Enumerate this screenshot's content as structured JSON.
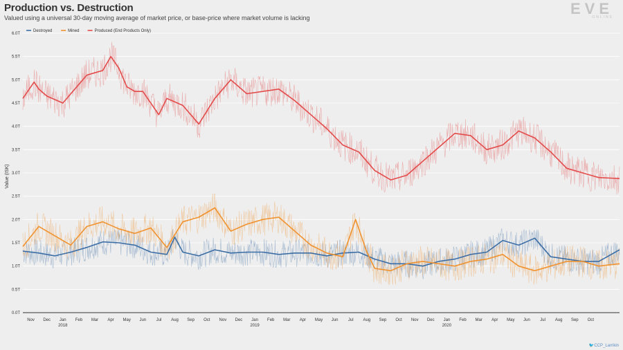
{
  "title": "Production vs. Destruction",
  "subtitle": "Valued using a universal 30-day moving average of market price, or base-price where market volume is lacking",
  "logo": {
    "main": "EVE",
    "sub": "ONLINE"
  },
  "credit": "CCP_Larrikin",
  "colors": {
    "destroyed": "#3c6ea5",
    "mined": "#f0922e",
    "produced": "#e34a4a",
    "background": "#eeeeee",
    "grid": "#ffffff"
  },
  "chart_data": {
    "type": "line",
    "title": "Production vs. Destruction",
    "ylabel": "Value (ISK)",
    "xlabel": "",
    "ylim": [
      0,
      6.0
    ],
    "yticks": [
      {
        "value": 0.0,
        "label": "0.0T"
      },
      {
        "value": 0.5,
        "label": "0.5T"
      },
      {
        "value": 1.0,
        "label": "1.0T"
      },
      {
        "value": 1.5,
        "label": "1.5T"
      },
      {
        "value": 2.0,
        "label": "2.0T"
      },
      {
        "value": 2.5,
        "label": "2.5T"
      },
      {
        "value": 3.0,
        "label": "3.0T"
      },
      {
        "value": 3.5,
        "label": "3.5T"
      },
      {
        "value": 4.0,
        "label": "4.0T"
      },
      {
        "value": 4.5,
        "label": "4.5T"
      },
      {
        "value": 5.0,
        "label": "5.0T"
      },
      {
        "value": 5.5,
        "label": "5.5T"
      },
      {
        "value": 6.0,
        "label": "6.0T"
      }
    ],
    "xrange": [
      0,
      37.3
    ],
    "xticks": [
      {
        "value": 0.5,
        "label": "Nov"
      },
      {
        "value": 1.5,
        "label": "Dec"
      },
      {
        "value": 2.5,
        "label": "Jan",
        "year": "2018"
      },
      {
        "value": 3.5,
        "label": "Feb"
      },
      {
        "value": 4.5,
        "label": "Mar"
      },
      {
        "value": 5.5,
        "label": "Apr"
      },
      {
        "value": 6.5,
        "label": "May"
      },
      {
        "value": 7.5,
        "label": "Jun"
      },
      {
        "value": 8.5,
        "label": "Jul"
      },
      {
        "value": 9.5,
        "label": "Aug"
      },
      {
        "value": 10.5,
        "label": "Sep"
      },
      {
        "value": 11.5,
        "label": "Oct"
      },
      {
        "value": 12.5,
        "label": "Nov"
      },
      {
        "value": 13.5,
        "label": "Dec"
      },
      {
        "value": 14.5,
        "label": "Jan",
        "year": "2019"
      },
      {
        "value": 15.5,
        "label": "Feb"
      },
      {
        "value": 16.5,
        "label": "Mar"
      },
      {
        "value": 17.5,
        "label": "Apr"
      },
      {
        "value": 18.5,
        "label": "May"
      },
      {
        "value": 19.5,
        "label": "Jun"
      },
      {
        "value": 20.5,
        "label": "Jul"
      },
      {
        "value": 21.5,
        "label": "Aug"
      },
      {
        "value": 22.5,
        "label": "Sep"
      },
      {
        "value": 23.5,
        "label": "Oct"
      },
      {
        "value": 24.5,
        "label": "Nov"
      },
      {
        "value": 25.5,
        "label": "Dec"
      },
      {
        "value": 26.5,
        "label": "Jan",
        "year": "2020"
      },
      {
        "value": 27.5,
        "label": "Feb"
      },
      {
        "value": 28.5,
        "label": "Mar"
      },
      {
        "value": 29.5,
        "label": "Apr"
      },
      {
        "value": 30.5,
        "label": "May"
      },
      {
        "value": 31.5,
        "label": "Jun"
      },
      {
        "value": 32.5,
        "label": "Jul"
      },
      {
        "value": 33.5,
        "label": "Aug"
      },
      {
        "value": 34.5,
        "label": "Sep"
      },
      {
        "value": 35.5,
        "label": "Oct"
      }
    ],
    "legend": [
      "Destroyed",
      "Mined",
      "Produced (End Products Only)"
    ],
    "legend_position": "top-left",
    "series": [
      {
        "name": "Destroyed",
        "x": [
          0,
          1,
          2,
          3,
          4,
          5,
          6,
          7,
          8,
          9,
          9.5,
          10,
          11,
          12,
          13,
          14,
          15,
          16,
          17,
          18,
          19,
          20,
          21,
          22,
          23,
          24,
          25,
          26,
          27,
          28,
          29,
          30,
          31,
          32,
          33,
          34,
          35,
          36,
          37.3
        ],
        "values": [
          1.32,
          1.28,
          1.22,
          1.3,
          1.4,
          1.52,
          1.5,
          1.45,
          1.3,
          1.25,
          1.62,
          1.3,
          1.22,
          1.35,
          1.28,
          1.3,
          1.3,
          1.25,
          1.28,
          1.28,
          1.22,
          1.28,
          1.3,
          1.15,
          1.05,
          1.05,
          1.0,
          1.1,
          1.15,
          1.25,
          1.3,
          1.55,
          1.45,
          1.6,
          1.2,
          1.15,
          1.1,
          1.1,
          1.35
        ]
      },
      {
        "name": "Mined",
        "x": [
          0,
          1,
          2,
          3,
          4,
          5,
          6,
          7,
          8,
          9,
          10,
          11,
          12,
          13,
          14,
          15,
          16,
          17,
          18,
          19,
          20,
          20.8,
          21.5,
          22,
          23,
          24,
          25,
          26,
          27,
          28,
          29,
          30,
          31,
          32,
          33,
          34,
          35,
          36,
          37.3
        ],
        "values": [
          1.42,
          1.85,
          1.65,
          1.45,
          1.85,
          1.95,
          1.8,
          1.7,
          1.82,
          1.4,
          1.95,
          2.05,
          2.25,
          1.75,
          1.9,
          2.0,
          2.05,
          1.75,
          1.45,
          1.28,
          1.2,
          2.0,
          1.3,
          0.95,
          0.9,
          1.05,
          1.1,
          1.05,
          1.0,
          1.1,
          1.15,
          1.25,
          1.0,
          0.9,
          1.0,
          1.1,
          1.1,
          1.0,
          1.05
        ]
      },
      {
        "name": "Produced (End Products Only)",
        "x": [
          0,
          0.7,
          1,
          1.5,
          2.5,
          3,
          4,
          4.5,
          5,
          5.5,
          6,
          6.5,
          7,
          7.5,
          8.5,
          9,
          10,
          11,
          12,
          13,
          14,
          15,
          16,
          17,
          18,
          19,
          20,
          21,
          22,
          23,
          24,
          25,
          26,
          27,
          28,
          29,
          30,
          31,
          32,
          33,
          34,
          35,
          36,
          37.3
        ],
        "values": [
          4.6,
          4.95,
          4.8,
          4.65,
          4.5,
          4.7,
          5.1,
          5.15,
          5.2,
          5.5,
          5.25,
          4.85,
          4.75,
          4.75,
          4.25,
          4.6,
          4.45,
          4.05,
          4.6,
          5.0,
          4.7,
          4.75,
          4.8,
          4.55,
          4.25,
          3.95,
          3.6,
          3.45,
          3.05,
          2.85,
          2.95,
          3.25,
          3.55,
          3.85,
          3.8,
          3.5,
          3.6,
          3.9,
          3.75,
          3.45,
          3.1,
          3.0,
          2.9,
          2.88
        ]
      }
    ]
  }
}
